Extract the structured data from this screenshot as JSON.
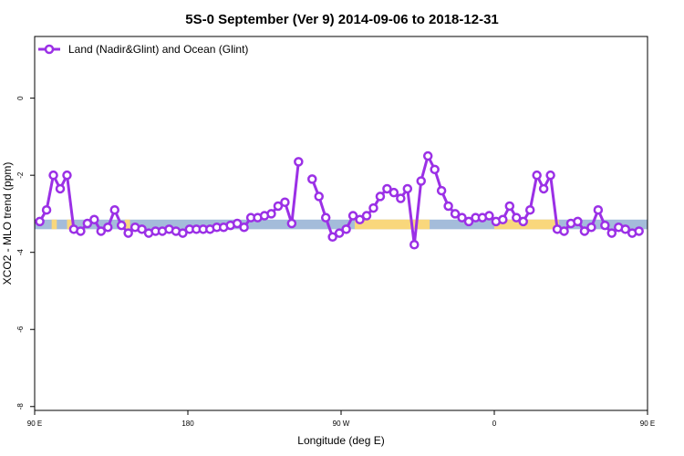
{
  "chart_data": {
    "type": "line",
    "title": "5S-0 September (Ver 9)   2014-09-06 to 2018-12-31",
    "xlabel": "Longitude (deg E)",
    "ylabel": "XCO2 - MLO trend (ppm)",
    "xlim": [
      90,
      450
    ],
    "ylim": [
      -8.1,
      1.6
    ],
    "x_ticks": [
      {
        "value": 90,
        "label": "90 E"
      },
      {
        "value": 180,
        "label": "180"
      },
      {
        "value": 270,
        "label": "90 W"
      },
      {
        "value": 360,
        "label": "0"
      },
      {
        "value": 450,
        "label": "90 E"
      },
      {
        "value": 540,
        "label": "180"
      }
    ],
    "y_ticks": [
      {
        "value": 0,
        "label": "0"
      },
      {
        "value": -2,
        "label": "-2"
      },
      {
        "value": -4,
        "label": "-4"
      },
      {
        "value": -6,
        "label": "-6"
      },
      {
        "value": -8,
        "label": "-8"
      }
    ],
    "legend": {
      "position": "top-left",
      "entries": [
        "Land (Nadir&Glint) and Ocean (Glint)"
      ]
    },
    "band": {
      "y_min": -3.4,
      "y_max": -3.15,
      "ocean_color": "#a4bcda",
      "land_color": "#f9d77c",
      "land_ranges": [
        [
          100,
          103
        ],
        [
          109,
          112
        ],
        [
          143,
          146
        ],
        [
          278,
          322
        ],
        [
          360,
          398
        ],
        [
          477,
          480
        ],
        [
          486,
          489
        ]
      ]
    },
    "series": [
      {
        "name": "Land (Nadir&Glint) and Ocean (Glint)",
        "color": "#9b30e6",
        "segments": [
          [
            [
              93,
              -3.2
            ],
            [
              97,
              -2.9
            ],
            [
              101,
              -2.0
            ],
            [
              105,
              -2.35
            ],
            [
              109,
              -2.0
            ],
            [
              113,
              -3.4
            ],
            [
              117,
              -3.45
            ],
            [
              121,
              -3.25
            ],
            [
              125,
              -3.15
            ],
            [
              129,
              -3.45
            ],
            [
              133,
              -3.35
            ],
            [
              137,
              -2.9
            ],
            [
              141,
              -3.3
            ],
            [
              145,
              -3.5
            ],
            [
              149,
              -3.35
            ],
            [
              153,
              -3.4
            ],
            [
              157,
              -3.5
            ],
            [
              161,
              -3.45
            ],
            [
              165,
              -3.45
            ],
            [
              169,
              -3.4
            ],
            [
              173,
              -3.45
            ],
            [
              177,
              -3.5
            ],
            [
              181,
              -3.4
            ],
            [
              185,
              -3.4
            ],
            [
              189,
              -3.4
            ],
            [
              193,
              -3.4
            ],
            [
              197,
              -3.35
            ],
            [
              201,
              -3.35
            ],
            [
              205,
              -3.3
            ],
            [
              209,
              -3.25
            ],
            [
              213,
              -3.35
            ],
            [
              217,
              -3.1
            ],
            [
              221,
              -3.1
            ],
            [
              225,
              -3.05
            ],
            [
              229,
              -3.0
            ],
            [
              233,
              -2.8
            ],
            [
              237,
              -2.7
            ],
            [
              241,
              -3.25
            ],
            [
              245,
              -1.65
            ]
          ],
          [
            [
              253,
              -2.1
            ],
            [
              257,
              -2.55
            ],
            [
              261,
              -3.1
            ],
            [
              265,
              -3.6
            ],
            [
              269,
              -3.5
            ],
            [
              273,
              -3.4
            ],
            [
              277,
              -3.05
            ],
            [
              281,
              -3.15
            ],
            [
              285,
              -3.05
            ],
            [
              289,
              -2.85
            ],
            [
              293,
              -2.55
            ],
            [
              297,
              -2.35
            ],
            [
              301,
              -2.45
            ],
            [
              305,
              -2.6
            ],
            [
              309,
              -2.35
            ],
            [
              313,
              -3.8
            ],
            [
              317,
              -2.15
            ],
            [
              321,
              -1.5
            ],
            [
              325,
              -1.85
            ],
            [
              329,
              -2.4
            ],
            [
              333,
              -2.8
            ],
            [
              337,
              -3.0
            ],
            [
              341,
              -3.1
            ],
            [
              345,
              -3.2
            ],
            [
              349,
              -3.1
            ],
            [
              353,
              -3.1
            ],
            [
              357,
              -3.05
            ],
            [
              361,
              -3.2
            ],
            [
              365,
              -3.15
            ],
            [
              369,
              -2.8
            ],
            [
              373,
              -3.1
            ],
            [
              377,
              -3.2
            ],
            [
              381,
              -2.9
            ],
            [
              385,
              -2.0
            ],
            [
              389,
              -2.35
            ],
            [
              393,
              -2.0
            ],
            [
              397,
              -3.4
            ],
            [
              401,
              -3.45
            ],
            [
              405,
              -3.25
            ],
            [
              409,
              -3.2
            ],
            [
              413,
              -3.45
            ],
            [
              417,
              -3.35
            ],
            [
              421,
              -2.9
            ],
            [
              425,
              -3.3
            ],
            [
              429,
              -3.5
            ],
            [
              433,
              -3.35
            ],
            [
              437,
              -3.4
            ],
            [
              441,
              -3.5
            ],
            [
              445,
              -3.45
            ]
          ]
        ]
      }
    ]
  }
}
